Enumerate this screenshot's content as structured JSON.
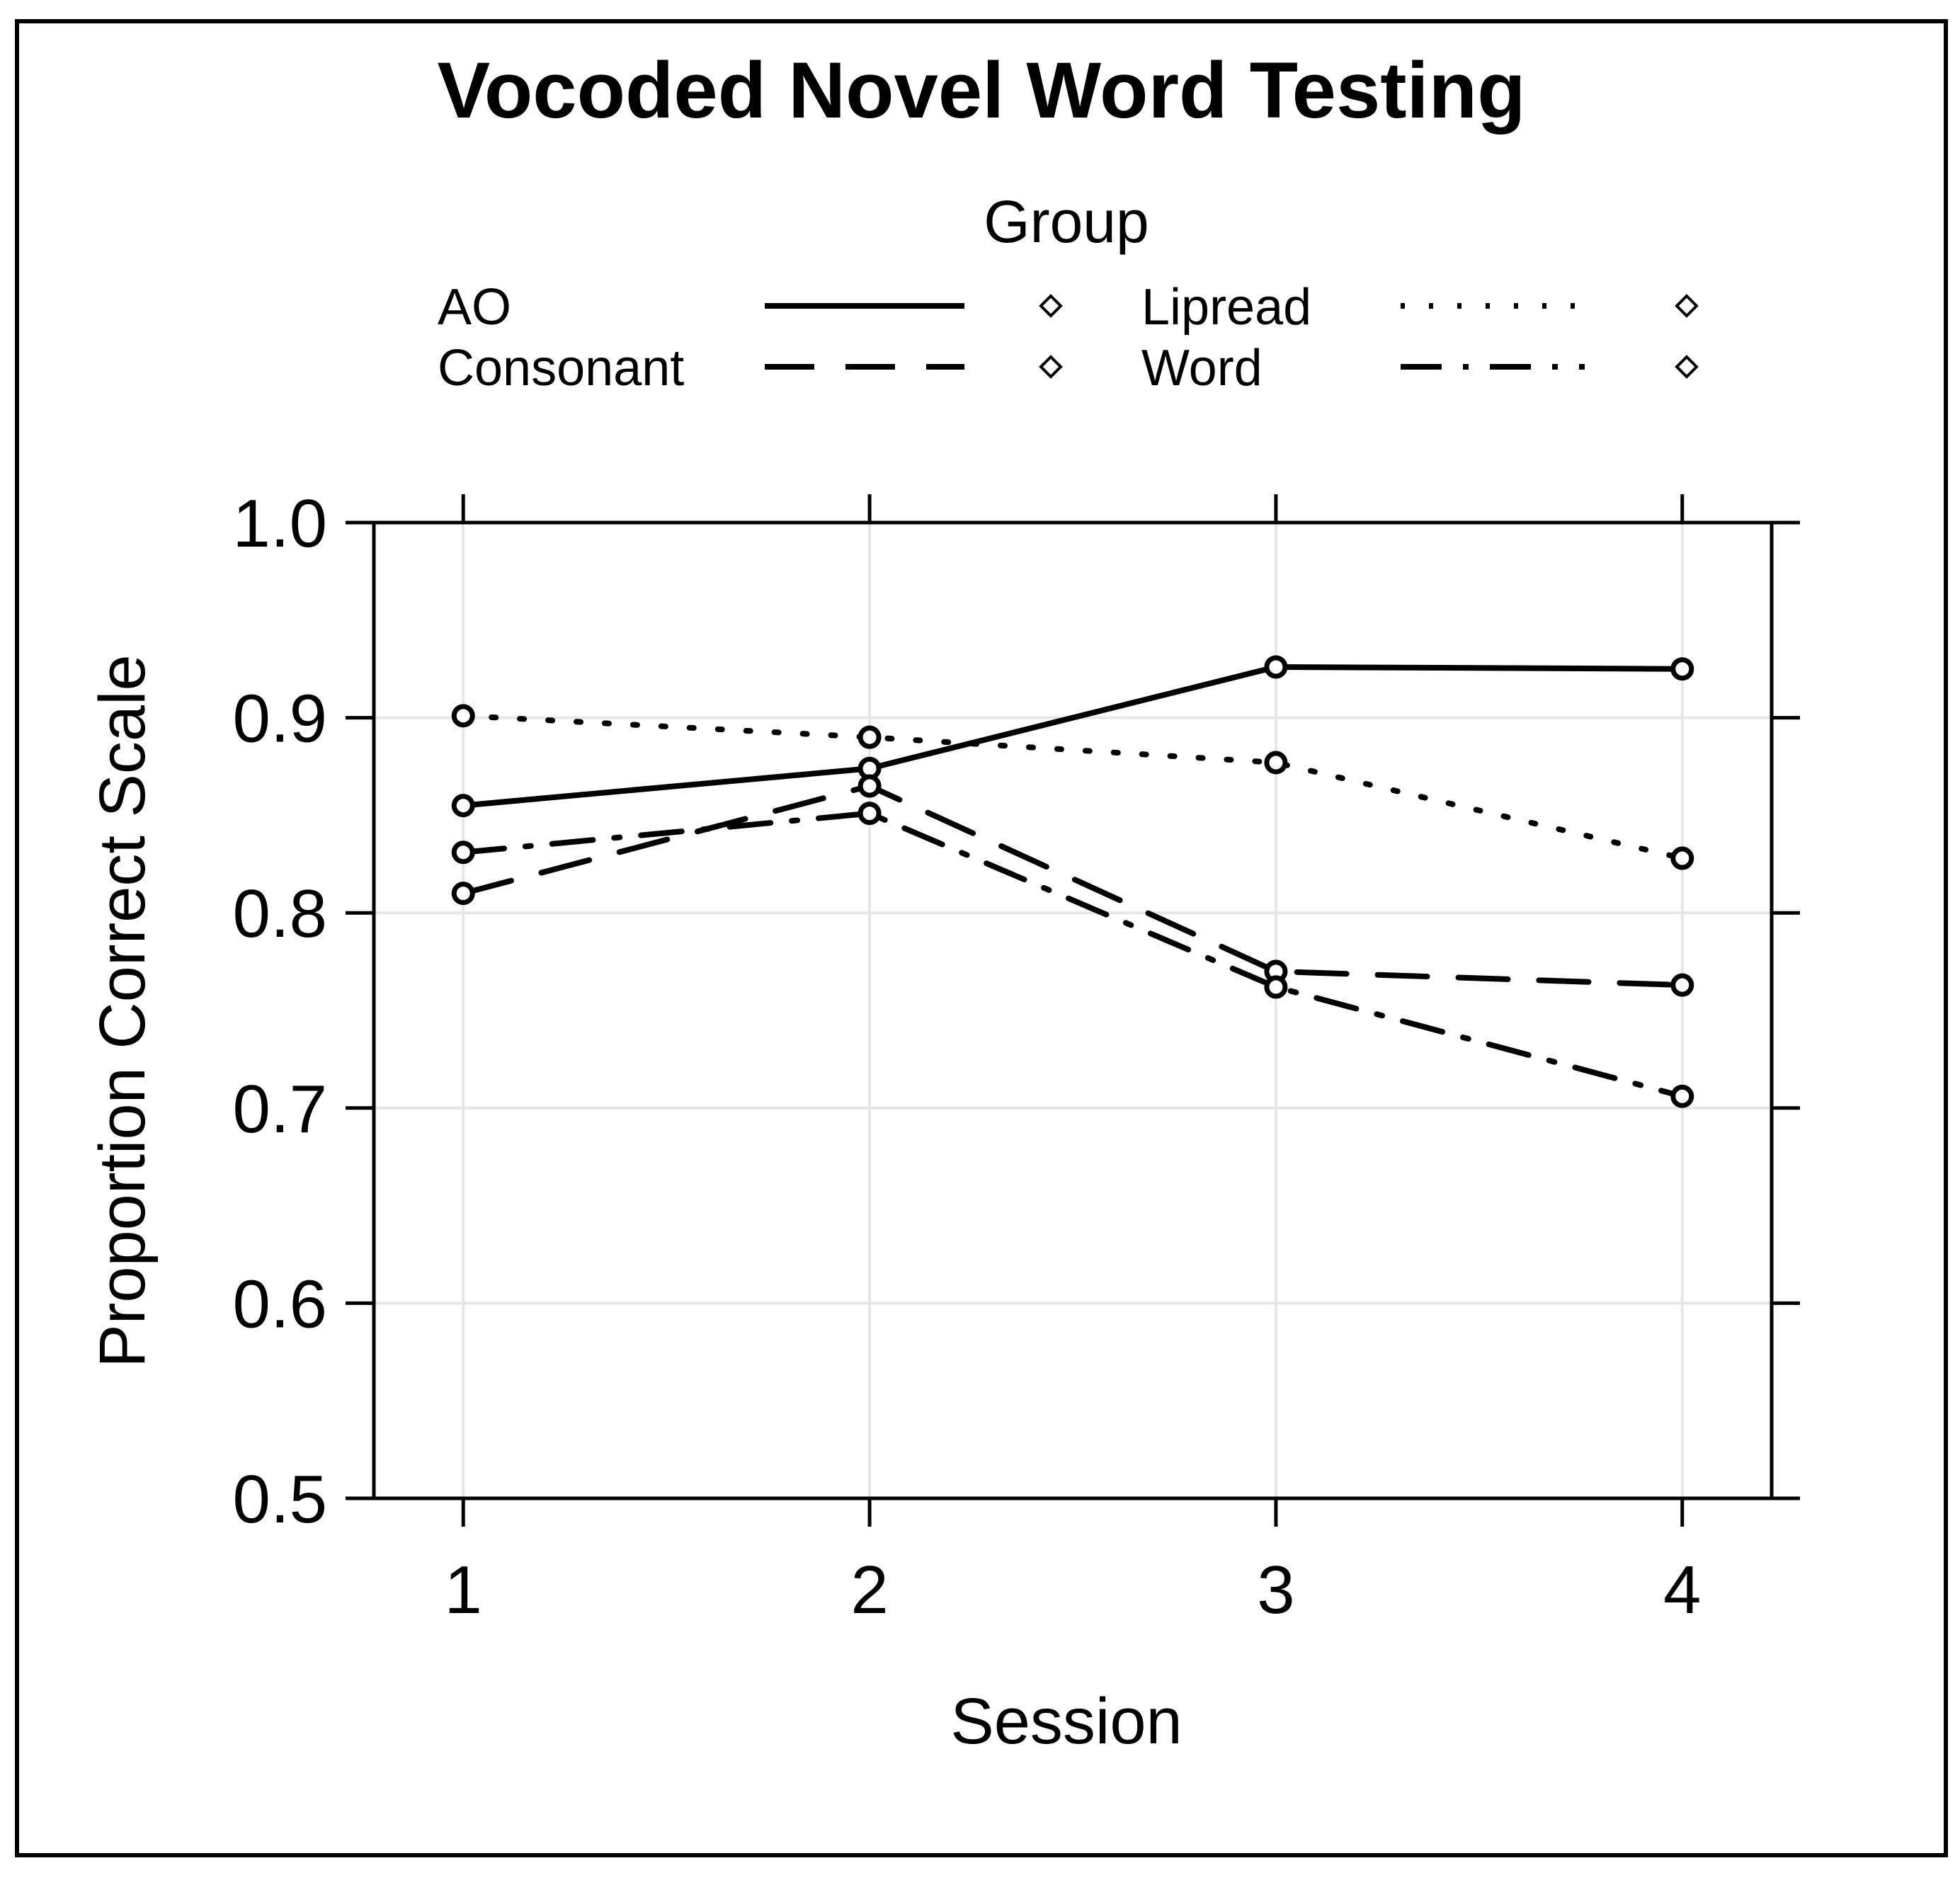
{
  "chart_data": {
    "type": "line",
    "title": "Vocoded Novel Word Testing",
    "xlabel": "Session",
    "ylabel": "Proportion Correct Scale",
    "x": [
      1,
      2,
      3,
      4
    ],
    "x_tick_labels": [
      "1",
      "2",
      "3",
      "4"
    ],
    "y_tick_labels": [
      "0.5",
      "0.6",
      "0.7",
      "0.8",
      "0.9",
      "1.0"
    ],
    "y_ticks": [
      0.5,
      0.6,
      0.7,
      0.8,
      0.9,
      1.0
    ],
    "ylim": [
      0.5,
      1.0
    ],
    "xlim": [
      0.78,
      4.22
    ],
    "grid": true,
    "legend": {
      "title": "Group",
      "placement": "top"
    },
    "series": [
      {
        "name": "AO",
        "line_style": "solid",
        "values": [
          0.855,
          0.874,
          0.926,
          0.925
        ]
      },
      {
        "name": "Lipread",
        "line_style": "dotted",
        "values": [
          0.901,
          0.89,
          0.877,
          0.828
        ]
      },
      {
        "name": "Consonant",
        "line_style": "dashed",
        "values": [
          0.81,
          0.865,
          0.77,
          0.763
        ]
      },
      {
        "name": "Word",
        "line_style": "dashdot",
        "values": [
          0.831,
          0.851,
          0.762,
          0.706
        ]
      }
    ],
    "colors": {
      "ink": "#000000",
      "grid": "#e6e6e6",
      "background": "#ffffff"
    }
  }
}
